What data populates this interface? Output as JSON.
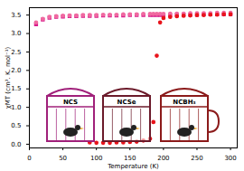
{
  "chart_data": {
    "type": "scatter",
    "x_label": "Temperature (K)",
    "y_label": "χMT (cm³. K. mol⁻¹)",
    "x": [
      10,
      20,
      30,
      40,
      50,
      60,
      70,
      80,
      90,
      100,
      110,
      120,
      130,
      140,
      150,
      160,
      170,
      180,
      185,
      190,
      195,
      200,
      210,
      220,
      230,
      240,
      250,
      260,
      270,
      280,
      290,
      300
    ],
    "series": [
      {
        "name": "NCS",
        "color": "#d81b8c",
        "marker": "square",
        "values": [
          3.25,
          3.38,
          3.43,
          3.45,
          3.46,
          3.47,
          3.47,
          3.48,
          3.48,
          3.48,
          3.49,
          3.49,
          3.49,
          3.49,
          3.5,
          3.5,
          3.5,
          3.5,
          3.5,
          3.5,
          3.5,
          3.5,
          3.5,
          3.51,
          3.51,
          3.51,
          3.51,
          3.52,
          3.52,
          3.52,
          3.52,
          3.52
        ]
      },
      {
        "name": "NCSe",
        "color": "#f06aa0",
        "marker": "circle",
        "values": [
          3.3,
          3.4,
          3.45,
          3.47,
          3.48,
          3.49,
          3.49,
          3.5,
          3.5,
          3.5,
          3.51,
          3.51,
          3.51,
          3.52,
          3.52,
          3.52,
          3.53,
          3.53,
          3.53,
          3.53,
          3.53,
          3.53,
          3.54,
          3.54,
          3.54,
          3.55,
          3.55,
          3.55,
          3.55,
          3.56,
          3.56,
          3.56
        ]
      },
      {
        "name": "NCBH₃",
        "color": "#e8141c",
        "marker": "circle",
        "values": [
          null,
          null,
          null,
          null,
          null,
          null,
          null,
          null,
          0.05,
          0.04,
          0.04,
          0.04,
          0.05,
          0.05,
          0.06,
          0.07,
          0.1,
          0.15,
          0.6,
          2.4,
          3.3,
          3.42,
          3.45,
          3.47,
          3.48,
          3.49,
          3.5,
          3.5,
          3.51,
          3.51,
          3.52,
          3.52
        ]
      }
    ],
    "xlim": [
      0,
      310
    ],
    "xticks": [
      0,
      50,
      100,
      150,
      200,
      250,
      300
    ],
    "ylim": [
      -0.1,
      3.7
    ],
    "yticks": [
      {
        "value": 0,
        "label": "0.0"
      },
      {
        "value": 0.5,
        "label": "0.5"
      },
      {
        "value": 1,
        "label": "1.0"
      },
      {
        "value": 1.5,
        "label": "1.5"
      },
      {
        "value": 2,
        "label": "2.0"
      },
      {
        "value": 2.5,
        "label": "2.5"
      },
      {
        "value": 3,
        "label": "3.0"
      },
      {
        "value": 3.5,
        "label": "3.5"
      }
    ],
    "grid": false
  }
}
